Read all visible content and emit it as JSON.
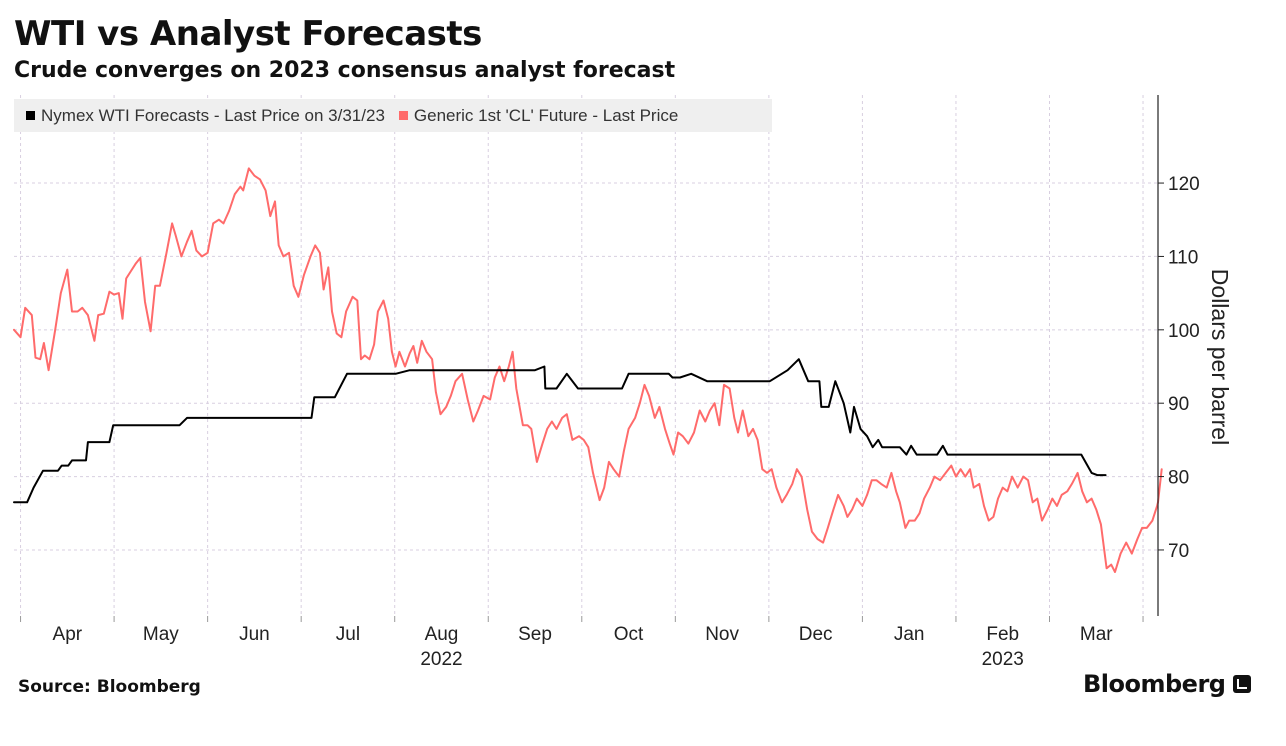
{
  "header": {
    "title": "WTI vs Analyst Forecasts",
    "subtitle": "Crude converges on 2023 consensus analyst forecast"
  },
  "legend": {
    "items": [
      {
        "label": "Nymex WTI Forecasts - Last Price on 3/31/23",
        "color": "#000000"
      },
      {
        "label": "Generic 1st 'CL' Future - Last Price",
        "color": "#ff6b6b"
      }
    ]
  },
  "footer": {
    "source": "Source: Bloomberg",
    "brand": "Bloomberg"
  },
  "chart_data": {
    "type": "line",
    "title": "WTI vs Analyst Forecasts",
    "subtitle": "Crude converges on 2023 consensus analyst forecast",
    "ylabel": "Dollars per barrel",
    "ylim": [
      61,
      132
    ],
    "yticks": [
      70,
      80,
      90,
      100,
      110,
      120
    ],
    "grid": true,
    "legend_position": "top-left",
    "x_unit": "month index (0 = start of Apr 2022)",
    "xlim": [
      -0.07,
      12.16
    ],
    "xticks": [
      {
        "label": "Apr",
        "x": 0.5
      },
      {
        "label": "May",
        "x": 1.5
      },
      {
        "label": "Jun",
        "x": 2.5
      },
      {
        "label": "Jul",
        "x": 3.5
      },
      {
        "label": "Aug",
        "x": 4.5
      },
      {
        "label": "Sep",
        "x": 5.5
      },
      {
        "label": "Oct",
        "x": 6.5
      },
      {
        "label": "Nov",
        "x": 7.5
      },
      {
        "label": "Dec",
        "x": 8.5
      },
      {
        "label": "Jan",
        "x": 9.5
      },
      {
        "label": "Feb",
        "x": 10.5
      },
      {
        "label": "Mar",
        "x": 11.5
      }
    ],
    "year_labels": [
      {
        "label": "2022",
        "x": 4.5
      },
      {
        "label": "2023",
        "x": 10.5
      }
    ],
    "series": [
      {
        "name": "Nymex WTI Forecasts - Last Price on 3/31/23",
        "color": "#000000",
        "points": [
          [
            -0.07,
            76.5
          ],
          [
            0.07,
            76.5
          ],
          [
            0.14,
            78.5
          ],
          [
            0.24,
            80.8
          ],
          [
            0.4,
            80.8
          ],
          [
            0.44,
            81.5
          ],
          [
            0.51,
            81.5
          ],
          [
            0.55,
            82.2
          ],
          [
            0.7,
            82.2
          ],
          [
            0.72,
            84.7
          ],
          [
            0.95,
            84.7
          ],
          [
            0.99,
            87
          ],
          [
            1.7,
            87
          ],
          [
            1.78,
            88
          ],
          [
            3.11,
            88
          ],
          [
            3.14,
            90.8
          ],
          [
            3.36,
            90.8
          ],
          [
            3.49,
            94
          ],
          [
            4.01,
            94
          ],
          [
            4.16,
            94.5
          ],
          [
            5.5,
            94.5
          ],
          [
            5.6,
            95
          ],
          [
            5.61,
            92
          ],
          [
            5.73,
            92
          ],
          [
            5.84,
            94
          ],
          [
            5.96,
            92
          ],
          [
            6.43,
            92
          ],
          [
            6.5,
            94
          ],
          [
            6.93,
            94
          ],
          [
            6.97,
            93.5
          ],
          [
            7.05,
            93.5
          ],
          [
            7.17,
            94
          ],
          [
            7.34,
            93
          ],
          [
            8.01,
            93
          ],
          [
            8.2,
            94.5
          ],
          [
            8.32,
            96
          ],
          [
            8.42,
            93
          ],
          [
            8.54,
            93
          ],
          [
            8.56,
            89.5
          ],
          [
            8.64,
            89.5
          ],
          [
            8.71,
            93
          ],
          [
            8.8,
            90
          ],
          [
            8.87,
            86
          ],
          [
            8.91,
            89.5
          ],
          [
            8.98,
            86.5
          ],
          [
            9.05,
            85.5
          ],
          [
            9.11,
            84
          ],
          [
            9.17,
            85
          ],
          [
            9.21,
            84
          ],
          [
            9.4,
            84
          ],
          [
            9.47,
            83
          ],
          [
            9.52,
            84.2
          ],
          [
            9.58,
            83
          ],
          [
            9.8,
            83
          ],
          [
            9.86,
            84.2
          ],
          [
            9.91,
            83
          ],
          [
            11.34,
            83
          ],
          [
            11.45,
            80.5
          ],
          [
            11.51,
            80.2
          ],
          [
            11.6,
            80.2
          ]
        ]
      },
      {
        "name": "Generic 1st 'CL' Future - Last Price",
        "color": "#ff6b6b",
        "points": [
          [
            -0.07,
            100
          ],
          [
            0.0,
            99
          ],
          [
            0.05,
            103
          ],
          [
            0.12,
            102
          ],
          [
            0.16,
            96.2
          ],
          [
            0.21,
            96
          ],
          [
            0.25,
            98.2
          ],
          [
            0.3,
            94.5
          ],
          [
            0.37,
            100
          ],
          [
            0.43,
            105
          ],
          [
            0.5,
            108.2
          ],
          [
            0.55,
            102.5
          ],
          [
            0.61,
            102.5
          ],
          [
            0.66,
            103
          ],
          [
            0.72,
            102
          ],
          [
            0.79,
            98.5
          ],
          [
            0.83,
            102
          ],
          [
            0.89,
            102.2
          ],
          [
            0.95,
            105.2
          ],
          [
            1.0,
            104.8
          ],
          [
            1.05,
            105
          ],
          [
            1.09,
            101.5
          ],
          [
            1.13,
            107
          ],
          [
            1.18,
            108
          ],
          [
            1.23,
            109
          ],
          [
            1.28,
            109.8
          ],
          [
            1.33,
            103.8
          ],
          [
            1.39,
            99.8
          ],
          [
            1.44,
            106
          ],
          [
            1.49,
            106
          ],
          [
            1.56,
            110.5
          ],
          [
            1.62,
            114.5
          ],
          [
            1.66,
            112.8
          ],
          [
            1.72,
            110
          ],
          [
            1.78,
            112
          ],
          [
            1.83,
            113.5
          ],
          [
            1.88,
            110.8
          ],
          [
            1.94,
            110
          ],
          [
            2.0,
            110.5
          ],
          [
            2.06,
            114.5
          ],
          [
            2.12,
            115
          ],
          [
            2.17,
            114.5
          ],
          [
            2.23,
            116.2
          ],
          [
            2.29,
            118.5
          ],
          [
            2.35,
            119.5
          ],
          [
            2.38,
            119
          ],
          [
            2.44,
            122
          ],
          [
            2.5,
            121
          ],
          [
            2.56,
            120.5
          ],
          [
            2.62,
            119
          ],
          [
            2.67,
            115.5
          ],
          [
            2.72,
            117.5
          ],
          [
            2.76,
            111.5
          ],
          [
            2.81,
            110
          ],
          [
            2.87,
            110.5
          ],
          [
            2.92,
            106
          ],
          [
            2.97,
            104.5
          ],
          [
            3.03,
            107.5
          ],
          [
            3.1,
            110
          ],
          [
            3.15,
            111.5
          ],
          [
            3.2,
            110.5
          ],
          [
            3.24,
            105.5
          ],
          [
            3.29,
            108.5
          ],
          [
            3.33,
            102.5
          ],
          [
            3.38,
            99.5
          ],
          [
            3.43,
            99
          ],
          [
            3.48,
            102.5
          ],
          [
            3.55,
            104.5
          ],
          [
            3.6,
            104
          ],
          [
            3.64,
            96
          ],
          [
            3.68,
            96.5
          ],
          [
            3.73,
            96
          ],
          [
            3.78,
            98
          ],
          [
            3.82,
            102.5
          ],
          [
            3.88,
            104
          ],
          [
            3.93,
            101.5
          ],
          [
            3.97,
            97
          ],
          [
            4.01,
            95
          ],
          [
            4.05,
            97
          ],
          [
            4.11,
            95
          ],
          [
            4.16,
            96.8
          ],
          [
            4.2,
            97.8
          ],
          [
            4.24,
            95.5
          ],
          [
            4.29,
            98.5
          ],
          [
            4.34,
            97
          ],
          [
            4.4,
            96
          ],
          [
            4.44,
            91.5
          ],
          [
            4.49,
            88.5
          ],
          [
            4.55,
            89.5
          ],
          [
            4.6,
            91
          ],
          [
            4.65,
            93
          ],
          [
            4.72,
            94
          ],
          [
            4.78,
            90.5
          ],
          [
            4.84,
            87.5
          ],
          [
            4.89,
            89
          ],
          [
            4.95,
            91
          ],
          [
            5.02,
            90.5
          ],
          [
            5.07,
            93.5
          ],
          [
            5.12,
            95
          ],
          [
            5.17,
            93
          ],
          [
            5.22,
            95
          ],
          [
            5.26,
            97
          ],
          [
            5.3,
            92
          ],
          [
            5.37,
            87
          ],
          [
            5.42,
            87
          ],
          [
            5.46,
            86.5
          ],
          [
            5.52,
            82
          ],
          [
            5.58,
            84.5
          ],
          [
            5.63,
            86.5
          ],
          [
            5.68,
            87.5
          ],
          [
            5.73,
            86.5
          ],
          [
            5.79,
            88
          ],
          [
            5.84,
            88.5
          ],
          [
            5.9,
            85
          ],
          [
            5.97,
            85.5
          ],
          [
            6.02,
            85
          ],
          [
            6.07,
            84
          ],
          [
            6.12,
            80.5
          ],
          [
            6.19,
            76.8
          ],
          [
            6.24,
            78.5
          ],
          [
            6.29,
            82
          ],
          [
            6.34,
            81
          ],
          [
            6.4,
            80
          ],
          [
            6.45,
            83.5
          ],
          [
            6.5,
            86.5
          ],
          [
            6.57,
            88
          ],
          [
            6.62,
            90
          ],
          [
            6.67,
            92.5
          ],
          [
            6.72,
            91
          ],
          [
            6.78,
            88
          ],
          [
            6.83,
            89.5
          ],
          [
            6.89,
            86.5
          ],
          [
            6.94,
            84.5
          ],
          [
            6.98,
            83
          ],
          [
            7.03,
            86
          ],
          [
            7.08,
            85.5
          ],
          [
            7.14,
            84.5
          ],
          [
            7.2,
            86
          ],
          [
            7.26,
            89
          ],
          [
            7.32,
            87.5
          ],
          [
            7.37,
            89
          ],
          [
            7.42,
            90
          ],
          [
            7.47,
            87
          ],
          [
            7.52,
            92.5
          ],
          [
            7.58,
            92
          ],
          [
            7.63,
            88
          ],
          [
            7.67,
            86
          ],
          [
            7.72,
            89
          ],
          [
            7.78,
            85.5
          ],
          [
            7.83,
            86.5
          ],
          [
            7.88,
            85
          ],
          [
            7.93,
            81
          ],
          [
            7.98,
            80.5
          ],
          [
            8.03,
            81
          ],
          [
            8.08,
            78.5
          ],
          [
            8.14,
            76.5
          ],
          [
            8.19,
            77.5
          ],
          [
            8.25,
            79
          ],
          [
            8.3,
            81
          ],
          [
            8.35,
            80
          ],
          [
            8.41,
            75.5
          ],
          [
            8.46,
            72.5
          ],
          [
            8.52,
            71.5
          ],
          [
            8.58,
            71
          ],
          [
            8.63,
            73
          ],
          [
            8.69,
            75.5
          ],
          [
            8.74,
            77.5
          ],
          [
            8.8,
            76
          ],
          [
            8.84,
            74.5
          ],
          [
            8.89,
            75.5
          ],
          [
            8.94,
            77
          ],
          [
            9.0,
            76
          ],
          [
            9.05,
            77.5
          ],
          [
            9.1,
            79.5
          ],
          [
            9.15,
            79.5
          ],
          [
            9.2,
            79
          ],
          [
            9.26,
            78.5
          ],
          [
            9.31,
            80.5
          ],
          [
            9.36,
            78
          ],
          [
            9.4,
            76.5
          ],
          [
            9.46,
            73
          ],
          [
            9.5,
            74
          ],
          [
            9.56,
            74
          ],
          [
            9.61,
            75
          ],
          [
            9.66,
            77
          ],
          [
            9.72,
            78.5
          ],
          [
            9.77,
            80
          ],
          [
            9.83,
            79.5
          ],
          [
            9.89,
            80.5
          ],
          [
            9.95,
            81.5
          ],
          [
            10.0,
            80
          ],
          [
            10.05,
            81
          ],
          [
            10.1,
            80
          ],
          [
            10.15,
            81
          ],
          [
            10.19,
            78.5
          ],
          [
            10.25,
            79
          ],
          [
            10.3,
            76
          ],
          [
            10.35,
            74
          ],
          [
            10.4,
            74.5
          ],
          [
            10.45,
            77
          ],
          [
            10.5,
            78.5
          ],
          [
            10.55,
            78
          ],
          [
            10.6,
            80
          ],
          [
            10.66,
            78.5
          ],
          [
            10.72,
            80
          ],
          [
            10.77,
            79.5
          ],
          [
            10.82,
            76.5
          ],
          [
            10.87,
            77
          ],
          [
            10.92,
            74
          ],
          [
            10.98,
            75.5
          ],
          [
            11.03,
            77
          ],
          [
            11.08,
            76
          ],
          [
            11.13,
            77.5
          ],
          [
            11.19,
            78
          ],
          [
            11.24,
            79
          ],
          [
            11.3,
            80.5
          ],
          [
            11.35,
            78
          ],
          [
            11.4,
            76.5
          ],
          [
            11.45,
            77
          ],
          [
            11.5,
            75.5
          ],
          [
            11.55,
            73.5
          ],
          [
            11.61,
            67.5
          ],
          [
            11.66,
            68
          ],
          [
            11.7,
            67
          ],
          [
            11.76,
            69.5
          ],
          [
            11.82,
            71
          ],
          [
            11.88,
            69.5
          ],
          [
            11.94,
            71.5
          ],
          [
            11.99,
            73
          ],
          [
            12.04,
            73
          ],
          [
            12.1,
            74
          ],
          [
            12.15,
            76
          ],
          [
            12.16,
            76.5
          ],
          [
            12.2,
            81
          ]
        ]
      }
    ]
  }
}
